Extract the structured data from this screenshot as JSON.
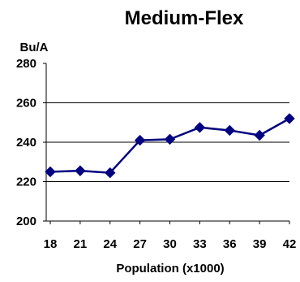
{
  "chart_data": {
    "type": "line",
    "title": "Medium-Flex",
    "xlabel": "Population (x1000)",
    "ylabel": "Bu/A",
    "x": [
      18,
      21,
      24,
      27,
      30,
      33,
      36,
      39,
      42
    ],
    "series": [
      {
        "values": [
          225,
          225.5,
          224.5,
          241,
          241.5,
          247.5,
          246,
          243.5,
          252
        ],
        "color": "#000080",
        "marker": "diamond"
      }
    ],
    "xticks": [
      "18",
      "21",
      "24",
      "27",
      "30",
      "33",
      "36",
      "39",
      "42"
    ],
    "yticks": [
      "200",
      "220",
      "240",
      "260",
      "280"
    ],
    "ylim": [
      200,
      280
    ],
    "grid": "horizontal",
    "legend": "none"
  }
}
